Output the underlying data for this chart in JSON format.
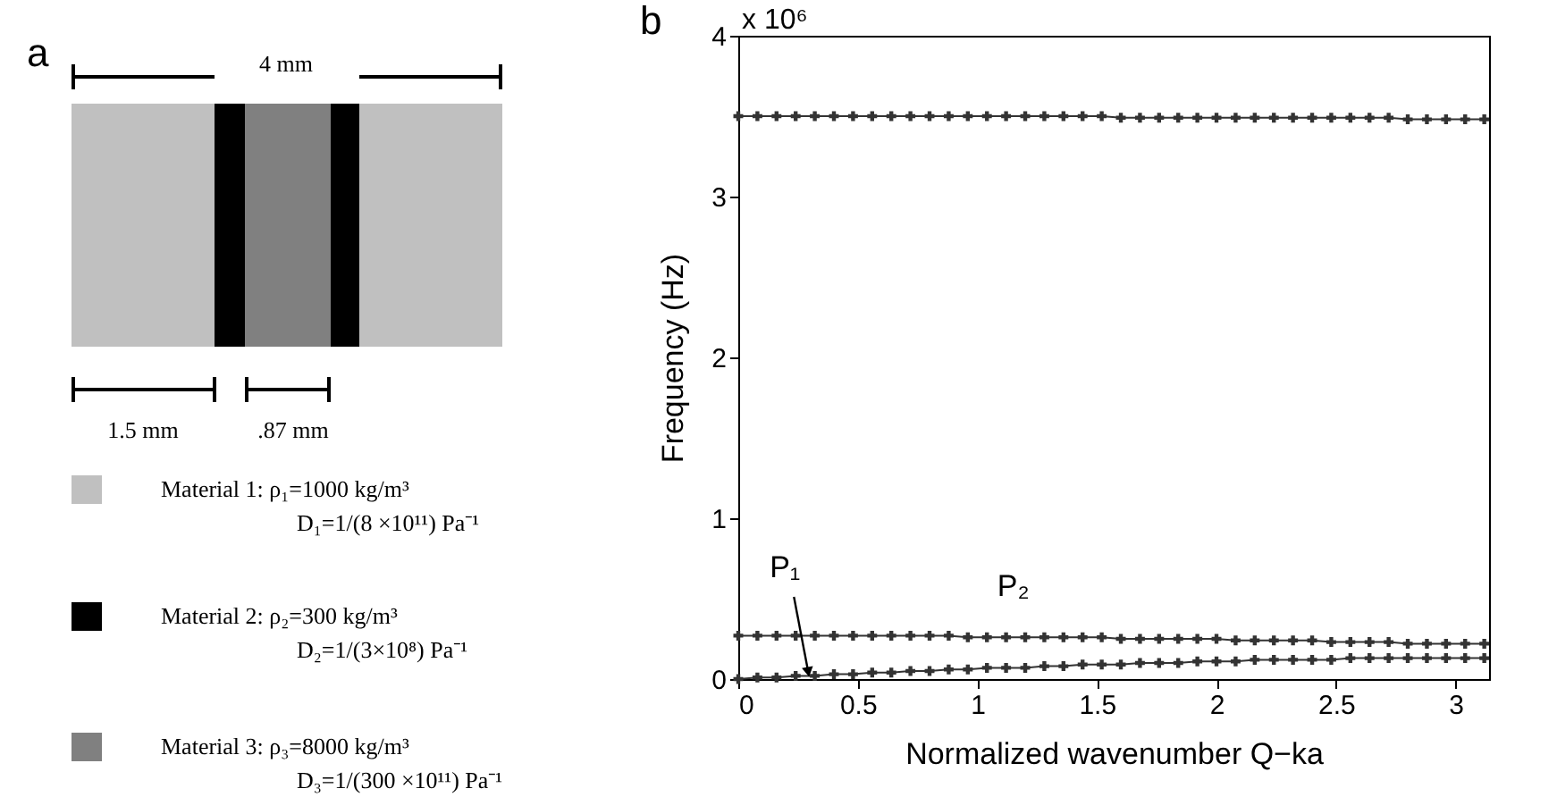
{
  "chart_data": [
    {
      "type": "other",
      "title": "a",
      "annotations": [
        "4 mm",
        "1.5 mm",
        ".87 mm",
        "Material 1: ρ₁=1000 kg/m³",
        "D₁=1/(8 ×10¹¹) Pa⁻¹",
        "Material 2: ρ₂=300 kg/m³",
        "D₂=1/(3×10⁸) Pa⁻¹",
        "Material 3: ρ₃=8000 kg/m³",
        "D₃=1/(300 ×10¹¹) Pa⁻¹"
      ]
    },
    {
      "type": "line",
      "title": "b",
      "xlabel": "Normalized wavenumber Q−ka",
      "ylabel": "Frequency (Hz)",
      "marker": "cross",
      "line_style": "solid",
      "grid": false,
      "xlim": [
        0,
        3.14
      ],
      "xticks": [
        0,
        0.5,
        1,
        1.5,
        2,
        2.5,
        3
      ],
      "ylim": [
        0,
        4
      ],
      "yticks": [
        0,
        1,
        2,
        3,
        4
      ],
      "x": [
        0,
        0.08,
        0.16,
        0.24,
        0.32,
        0.4,
        0.48,
        0.56,
        0.64,
        0.72,
        0.8,
        0.88,
        0.96,
        1.04,
        1.12,
        1.2,
        1.28,
        1.36,
        1.44,
        1.52,
        1.6,
        1.68,
        1.76,
        1.84,
        1.92,
        2,
        2.08,
        2.16,
        2.24,
        2.32,
        2.4,
        2.48,
        2.56,
        2.64,
        2.72,
        2.8,
        2.88,
        2.96,
        3.04,
        3.12
      ],
      "series": [
        {
          "color": "#333333",
          "values": [
            3.5,
            3.5,
            3.5,
            3.5,
            3.5,
            3.5,
            3.5,
            3.5,
            3.5,
            3.5,
            3.5,
            3.5,
            3.5,
            3.5,
            3.5,
            3.5,
            3.5,
            3.5,
            3.5,
            3.5,
            3.49,
            3.49,
            3.49,
            3.49,
            3.49,
            3.49,
            3.49,
            3.49,
            3.49,
            3.49,
            3.49,
            3.49,
            3.49,
            3.49,
            3.49,
            3.48,
            3.48,
            3.48,
            3.48,
            3.48
          ]
        },
        {
          "color": "#333333",
          "values": [
            0.27,
            0.27,
            0.27,
            0.27,
            0.27,
            0.27,
            0.27,
            0.27,
            0.27,
            0.27,
            0.27,
            0.27,
            0.26,
            0.26,
            0.26,
            0.26,
            0.26,
            0.26,
            0.26,
            0.26,
            0.25,
            0.25,
            0.25,
            0.25,
            0.25,
            0.25,
            0.24,
            0.24,
            0.24,
            0.24,
            0.24,
            0.23,
            0.23,
            0.23,
            0.23,
            0.22,
            0.22,
            0.22,
            0.22,
            0.22
          ]
        },
        {
          "color": "#333333",
          "values": [
            0,
            0.01,
            0.01,
            0.02,
            0.02,
            0.03,
            0.03,
            0.04,
            0.04,
            0.05,
            0.05,
            0.06,
            0.06,
            0.07,
            0.07,
            0.07,
            0.08,
            0.08,
            0.09,
            0.09,
            0.09,
            0.1,
            0.1,
            0.1,
            0.11,
            0.11,
            0.11,
            0.12,
            0.12,
            0.12,
            0.12,
            0.12,
            0.13,
            0.13,
            0.13,
            0.13,
            0.13,
            0.13,
            0.13,
            0.13
          ]
        }
      ],
      "annotations": [
        "x 10⁶",
        {
          "text": "P₁",
          "x": 0.3,
          "y": 0
        },
        {
          "text": "P₂",
          "x": 1.15,
          "y": 0.26
        }
      ]
    }
  ]
}
